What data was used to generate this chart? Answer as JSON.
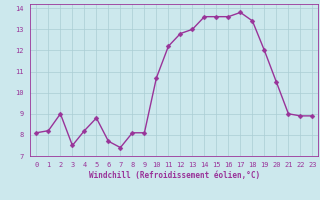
{
  "x": [
    0,
    1,
    2,
    3,
    4,
    5,
    6,
    7,
    8,
    9,
    10,
    11,
    12,
    13,
    14,
    15,
    16,
    17,
    18,
    19,
    20,
    21,
    22,
    23
  ],
  "y": [
    8.1,
    8.2,
    9.0,
    7.5,
    8.2,
    8.8,
    7.7,
    7.4,
    8.1,
    8.1,
    10.7,
    12.2,
    12.8,
    13.0,
    13.6,
    13.6,
    13.6,
    13.8,
    13.4,
    12.0,
    10.5,
    9.0,
    8.9,
    8.9
  ],
  "line_color": "#993399",
  "marker_color": "#993399",
  "bg_color": "#cce8ed",
  "grid_color": "#aacdd4",
  "text_color": "#993399",
  "xlabel": "Windchill (Refroidissement éolien,°C)",
  "xlim": [
    -0.5,
    23.5
  ],
  "ylim": [
    7,
    14.2
  ],
  "yticks": [
    7,
    8,
    9,
    10,
    11,
    12,
    13,
    14
  ],
  "xticks": [
    0,
    1,
    2,
    3,
    4,
    5,
    6,
    7,
    8,
    9,
    10,
    11,
    12,
    13,
    14,
    15,
    16,
    17,
    18,
    19,
    20,
    21,
    22,
    23
  ],
  "title_color": "#993399",
  "label_fontsize": 5.5,
  "tick_fontsize": 5.0,
  "line_width": 1.0,
  "marker_size": 2.5
}
